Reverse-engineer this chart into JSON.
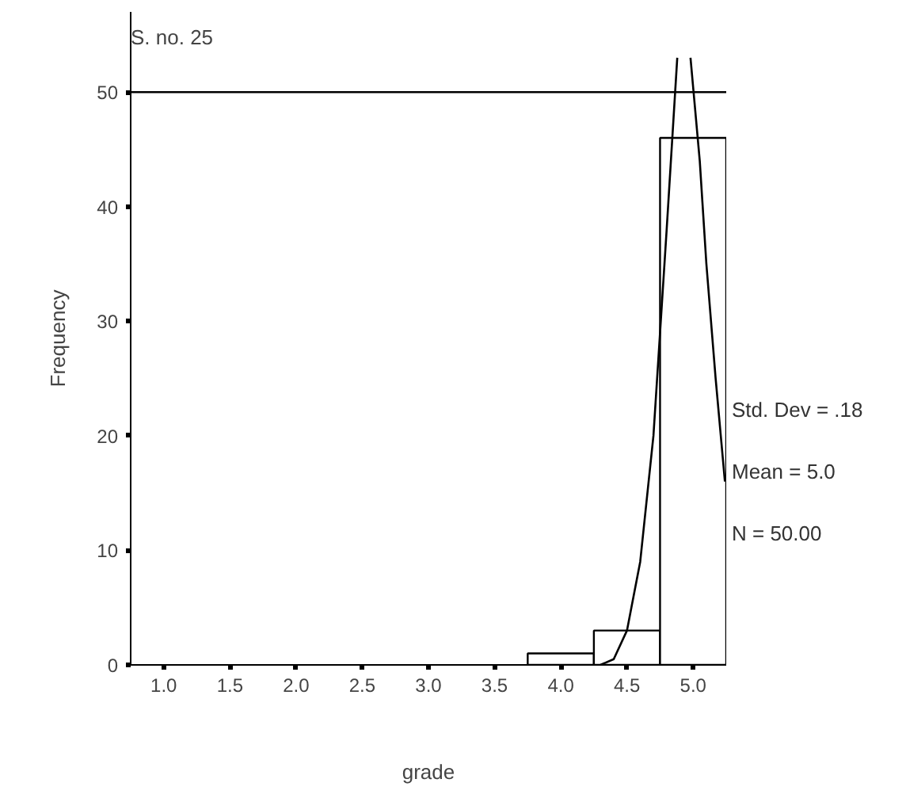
{
  "chart_data": {
    "type": "histogram",
    "title": "S. no. 25",
    "xlabel": "grade",
    "ylabel": "Frequency",
    "bins": [
      3.75,
      4.25,
      4.75,
      5.25
    ],
    "values": [
      1,
      3,
      46
    ],
    "color": "#ffffff",
    "series": [
      {
        "type": "line",
        "color": "#000000",
        "x": [
          4.3,
          4.4,
          4.5,
          4.6,
          4.7,
          4.8,
          4.88,
          4.9,
          4.93,
          4.96,
          4.98,
          5.05,
          5.1,
          5.17,
          5.24
        ],
        "values": [
          0,
          0.5,
          3,
          9,
          20,
          38,
          53,
          null,
          null,
          null,
          53,
          44,
          35,
          25,
          16
        ]
      }
    ],
    "xlim": [
      0.75,
      5.25
    ],
    "ylim": [
      0,
      57
    ],
    "xticks": [
      {
        "value": 1,
        "label": "1.0"
      },
      {
        "value": 1.5,
        "label": "1.5"
      },
      {
        "value": 2,
        "label": "2.0"
      },
      {
        "value": 2.5,
        "label": "2.5"
      },
      {
        "value": 3,
        "label": "3.0"
      },
      {
        "value": 3.5,
        "label": "3.5"
      },
      {
        "value": 4,
        "label": "4.0"
      },
      {
        "value": 4.5,
        "label": "4.5"
      },
      {
        "value": 5,
        "label": "5.0"
      }
    ],
    "yticks": [
      0,
      10,
      20,
      30,
      40,
      50
    ],
    "ref_lines": [
      {
        "axis": "y",
        "value": 50,
        "label": null,
        "color": "#000000"
      }
    ],
    "annotations": [
      "Std. Dev = .18",
      "Mean = 5.0",
      "N = 50.00"
    ],
    "grid": false
  }
}
